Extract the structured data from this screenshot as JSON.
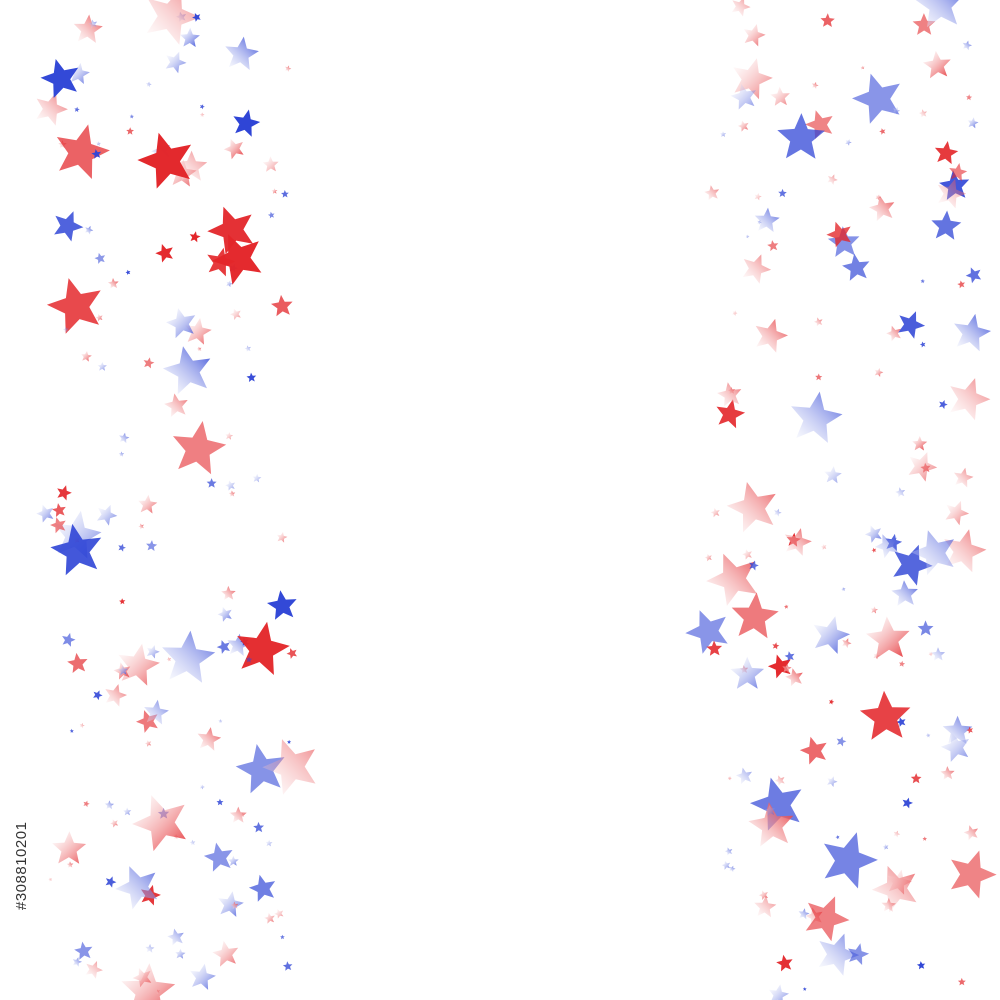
{
  "watermark": {
    "id": "#308810201"
  }
}
